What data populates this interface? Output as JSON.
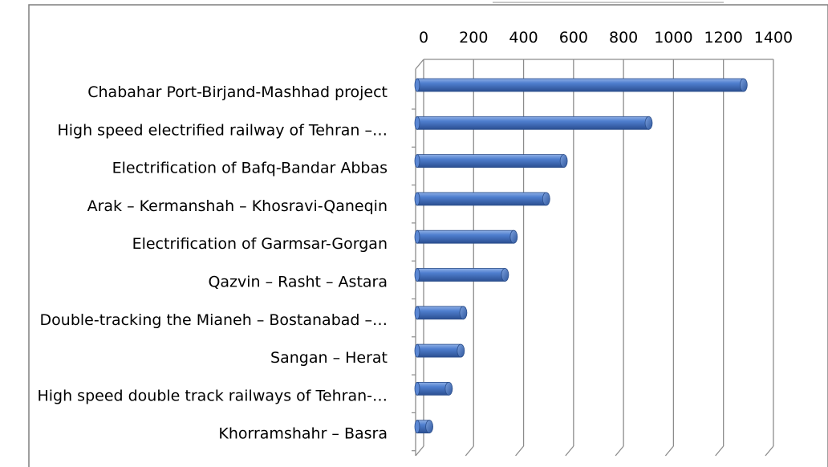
{
  "chart_data": {
    "type": "bar",
    "orientation": "horizontal",
    "style": "3d-cylinder",
    "xaxis_position": "top",
    "xlim": [
      0,
      1400
    ],
    "xticks": [
      "0",
      "200",
      "400",
      "600",
      "800",
      "1000",
      "1200",
      "1400"
    ],
    "grid": true,
    "legend": "none",
    "bar_color": "#4472c4",
    "categories": [
      "Chabahar Port-Birjand-Mashhad project",
      "High speed electrified railway of Tehran –…",
      "Electrification of Bafq-Bandar Abbas",
      "Arak – Kermanshah – Khosravi-Qaneqin",
      "Electrification of Garmsar-Gorgan",
      "Qazvin – Rasht – Astara",
      "Double-tracking the Mianeh – Bostanabad –…",
      "Sangan – Herat",
      "High speed double track railways of Tehran-…",
      "Khorramshahr – Basra"
    ],
    "values": [
      1300,
      920,
      580,
      510,
      380,
      345,
      178,
      168,
      120,
      42
    ]
  }
}
